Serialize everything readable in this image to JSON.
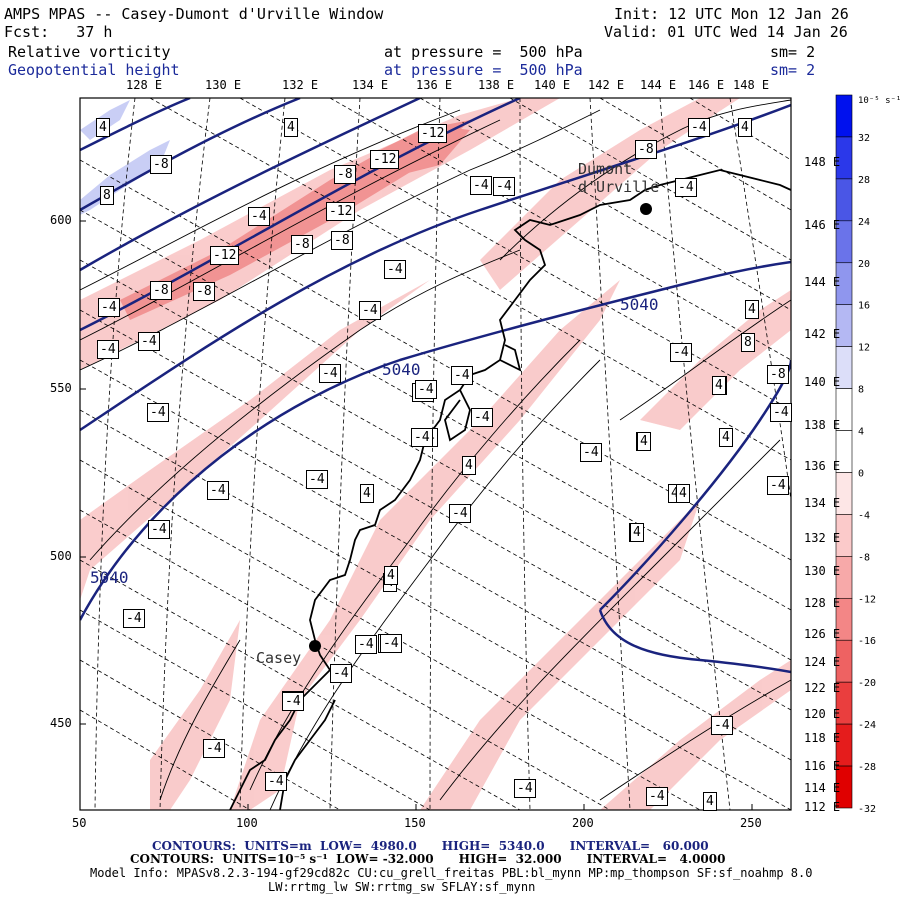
{
  "header": {
    "title": "AMPS MPAS -- Casey-Dumont d'Urville Window",
    "forecast": "Fcst:   37 h",
    "init": "Init: 12 UTC Mon 12 Jan 26",
    "valid": "Valid: 01 UTC Wed 14 Jan 26",
    "field1_name": "Relative vorticity",
    "field1_level": "at pressure =  500 hPa",
    "field1_sm": "sm= 2",
    "field2_name": "Geopotential height",
    "field2_level": "at pressure =  500 hPa",
    "field2_sm": "sm= 2"
  },
  "map": {
    "top_lon_labels": [
      "128 E",
      "130 E",
      "132 E",
      "134 E",
      "136 E",
      "138 E",
      "140 E",
      "142 E",
      "144 E",
      "146 E",
      "148 E"
    ],
    "right_lon_labels": [
      "148 E",
      "146 E",
      "144 E",
      "142 E",
      "140 E",
      "138 E",
      "136 E",
      "134 E",
      "132 E",
      "130 E",
      "128 E",
      "126 E",
      "124 E",
      "122 E",
      "120 E",
      "118 E",
      "116 E",
      "114 E",
      "112 E"
    ],
    "x_ticks": [
      "50",
      "100",
      "150",
      "200",
      "250"
    ],
    "y_ticks": [
      "600",
      "550",
      "500",
      "450"
    ],
    "places": [
      "Dumont d'Urville",
      "Casey"
    ],
    "height_labels": [
      "5040",
      "5040",
      "5040"
    ],
    "vorticity_labels": [
      "4",
      "4",
      "-8",
      "8",
      "4",
      "-4",
      "-12",
      "-12",
      "-12",
      "-8",
      "-4",
      "-8",
      "-12",
      "-8",
      "-4",
      "-4",
      "-4",
      "-8",
      "-4",
      "-4",
      "-4",
      "-8",
      "-8",
      "-4",
      "-4",
      "-4",
      "-4",
      "4",
      "-4",
      "-4",
      "-4",
      "-4",
      "-4",
      "-4",
      "4",
      "4",
      "-4",
      "-4",
      "4",
      "-4",
      "4",
      "8",
      "-8",
      "-4",
      "-4",
      "4",
      "-4",
      "-4",
      "-4",
      "4",
      "4",
      "4",
      "4",
      "-4",
      "-4",
      "4",
      "4",
      "4",
      "-4",
      "-4",
      "-4",
      "-4",
      "-4",
      "-4",
      "-4",
      "-4",
      "4",
      "4",
      "-4",
      "-4"
    ],
    "colors": {
      "height_contour": "#1a237e",
      "coast": "#000000",
      "positive_fill": "#e07070",
      "negative_fill": "#a9b4ef"
    }
  },
  "colorbar": {
    "unit": "10⁻⁵ s⁻¹",
    "labels": [
      "32",
      "28",
      "24",
      "20",
      "16",
      "12",
      "8",
      "4",
      "0",
      "-4",
      "-8",
      "-12",
      "-16",
      "-20",
      "-24",
      "-28",
      "-32"
    ],
    "colors": [
      "#0011ee",
      "#2b38ea",
      "#4a56e6",
      "#6a73ea",
      "#8f96ee",
      "#b4b8f3",
      "#dcdef9",
      "#ffffff",
      "#ffffff",
      "#fde6e6",
      "#fbcaca",
      "#f7a9a9",
      "#f38686",
      "#ee6262",
      "#ea3e3e",
      "#e51c1c",
      "#e00000"
    ]
  },
  "footer": {
    "contours1": "CONTOURS:  UNITS=m  LOW=  4980.0      HIGH=  5340.0      INTERVAL=   60.000",
    "contours2": "CONTOURS:  UNITS=10⁻⁵ s⁻¹  LOW= -32.000      HIGH=  32.000      INTERVAL=   4.0000",
    "model1": "Model Info: MPASv8.2.3-194-gf29cd82c CU:cu_grell_freitas PBL:bl_mynn MP:mp_thompson SF:sf_noahmp 8.0",
    "model2": "LW:rrtmg_lw SW:rrtmg_sw SFLAY:sf_mynn"
  }
}
